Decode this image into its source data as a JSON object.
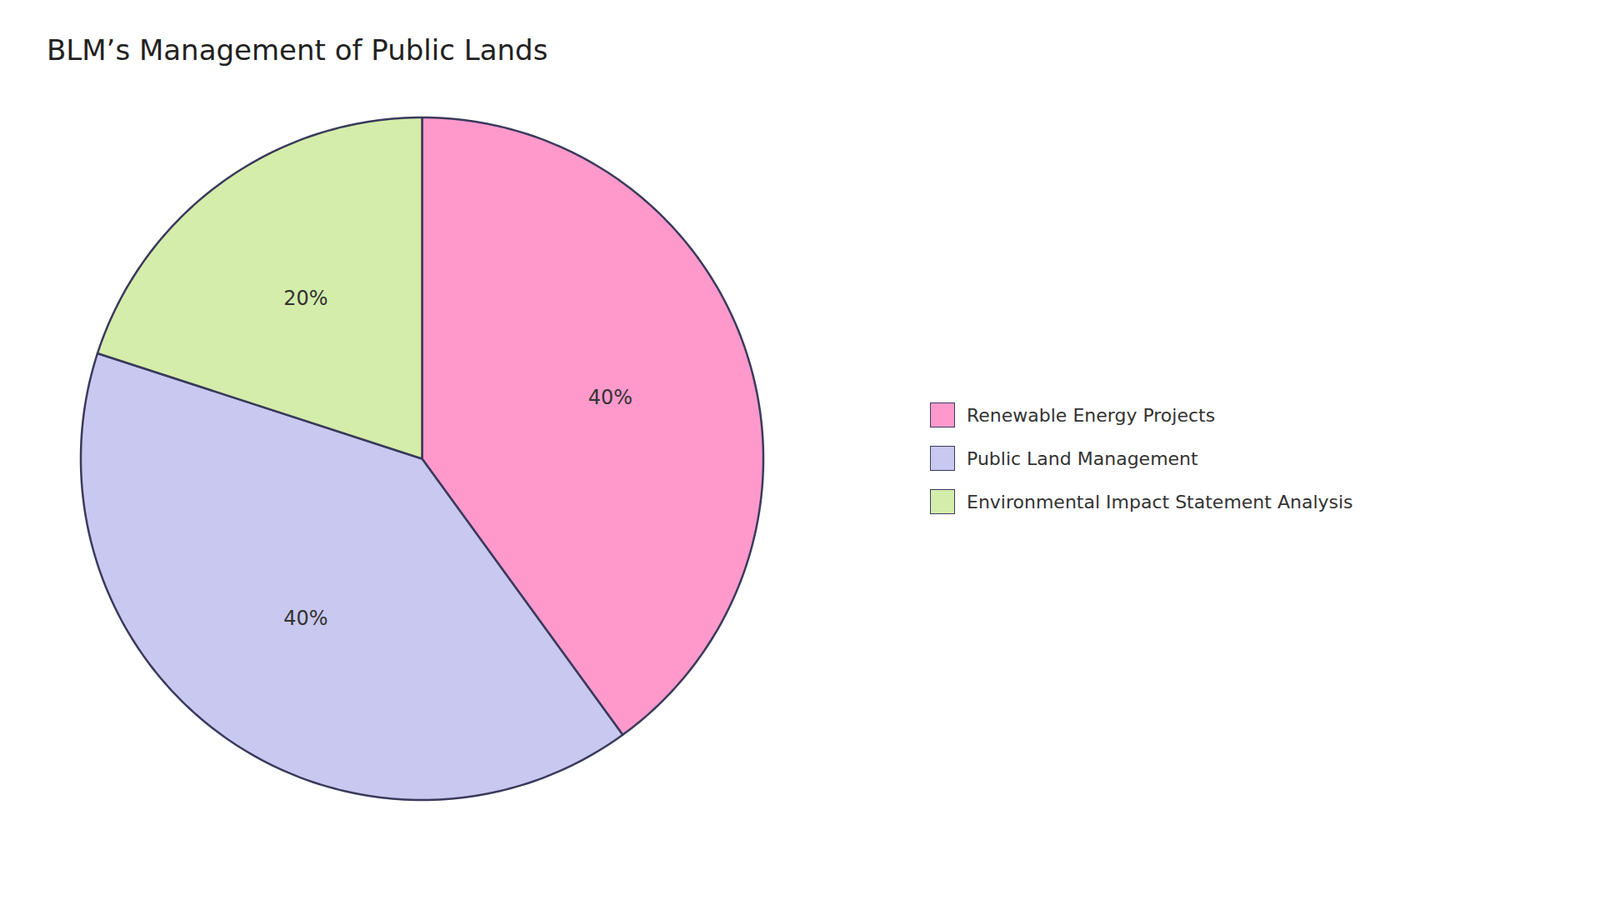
{
  "chart_data": {
    "type": "pie",
    "title": "BLM’s Management of Public Lands",
    "categories": [
      "Renewable Energy Projects",
      "Public Land Management",
      "Environmental Impact Statement Analysis"
    ],
    "values": [
      40,
      40,
      20
    ],
    "value_labels": [
      "40%",
      "40%",
      "20%"
    ],
    "colors": [
      "#FF99CC",
      "#C8C8F0",
      "#D4EDAA"
    ],
    "data_labels": true,
    "legend": "right"
  }
}
